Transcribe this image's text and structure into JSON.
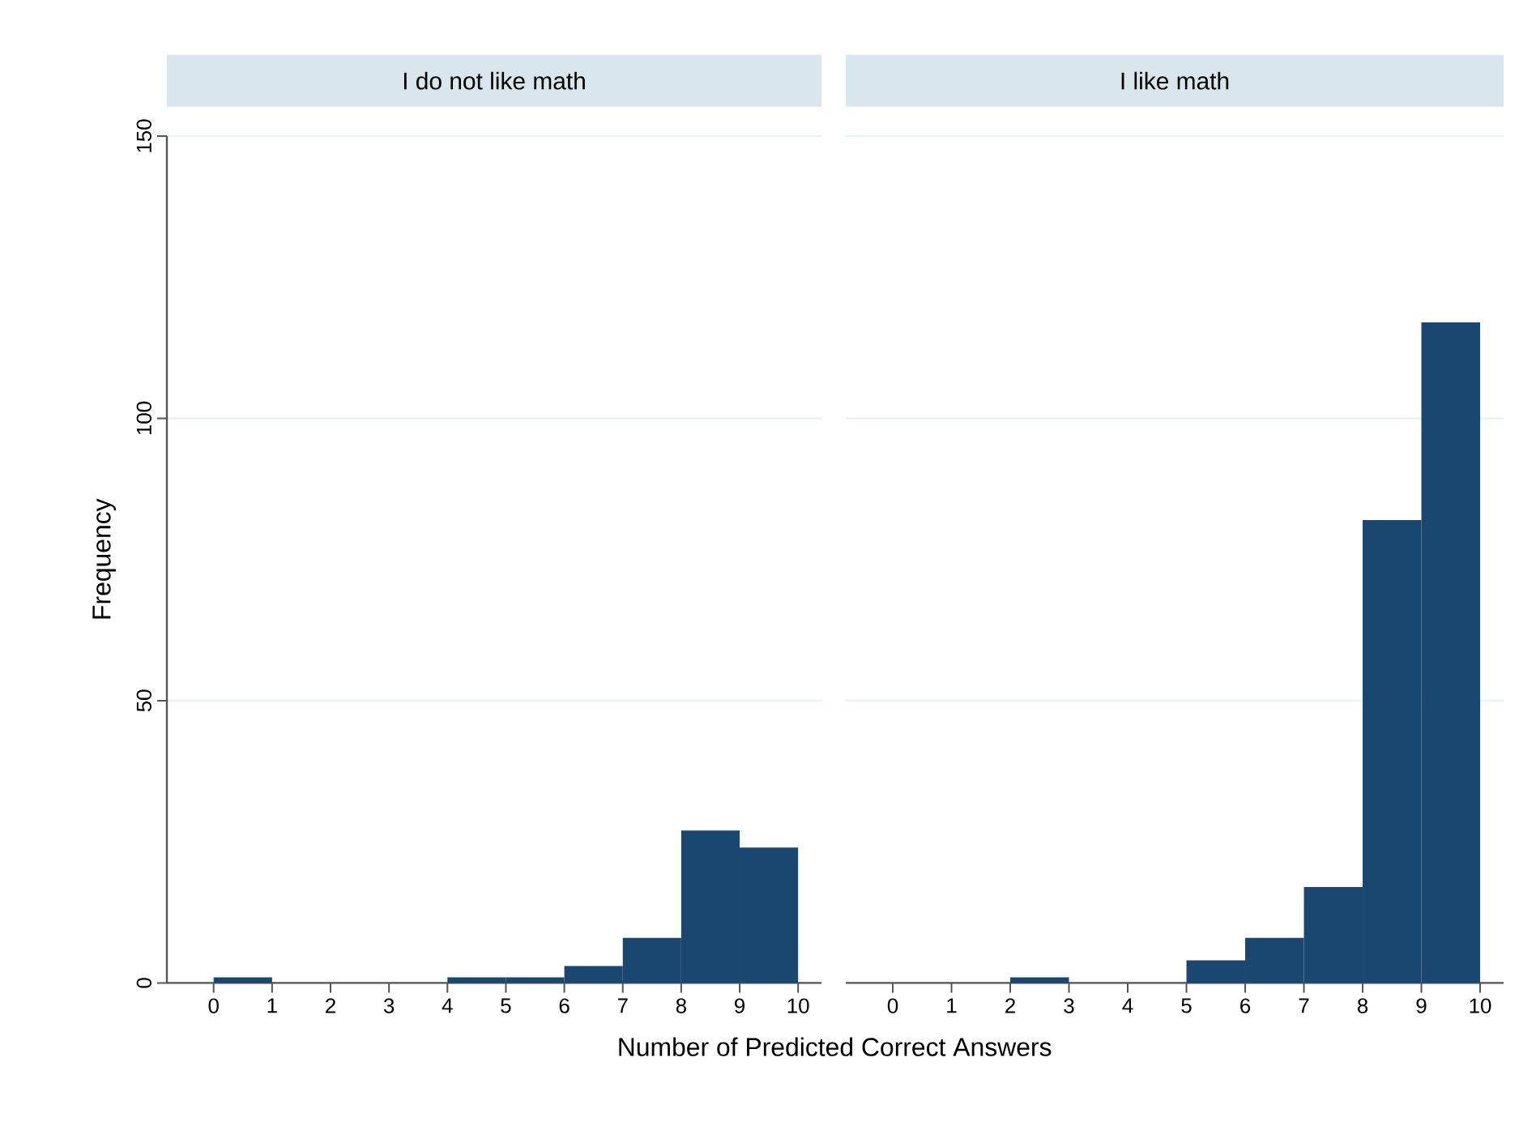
{
  "chart_data": [
    {
      "type": "histogram",
      "title": "I do not like math",
      "xlabel": "Number of Predicted Correct Answers",
      "ylabel": "Frequency",
      "bins": [
        0,
        1,
        2,
        3,
        4,
        5,
        6,
        7,
        8,
        9,
        10
      ],
      "values": [
        1,
        0,
        0,
        0,
        1,
        1,
        3,
        8,
        27,
        24
      ],
      "color": "#1a476f",
      "xlim": [
        -0.8,
        10.4
      ],
      "xticks": [
        0,
        1,
        2,
        3,
        4,
        5,
        6,
        7,
        8,
        9,
        10
      ],
      "ylim": [
        0,
        150
      ],
      "yticks": [
        0,
        50,
        100,
        150
      ],
      "grid": "y"
    },
    {
      "type": "histogram",
      "title": "I like math",
      "bins": [
        0,
        1,
        2,
        3,
        4,
        5,
        6,
        7,
        8,
        9,
        10
      ],
      "values": [
        0,
        0,
        1,
        0,
        0,
        4,
        8,
        17,
        82,
        117
      ],
      "color": "#1a476f",
      "xlim": [
        -0.8,
        10.4
      ],
      "xticks": [
        0,
        1,
        2,
        3,
        4,
        5,
        6,
        7,
        8,
        9,
        10
      ],
      "ylim": [
        0,
        150
      ],
      "yticks": [
        0,
        50,
        100,
        150
      ],
      "grid": "y",
      "tick_labels": "x"
    }
  ]
}
